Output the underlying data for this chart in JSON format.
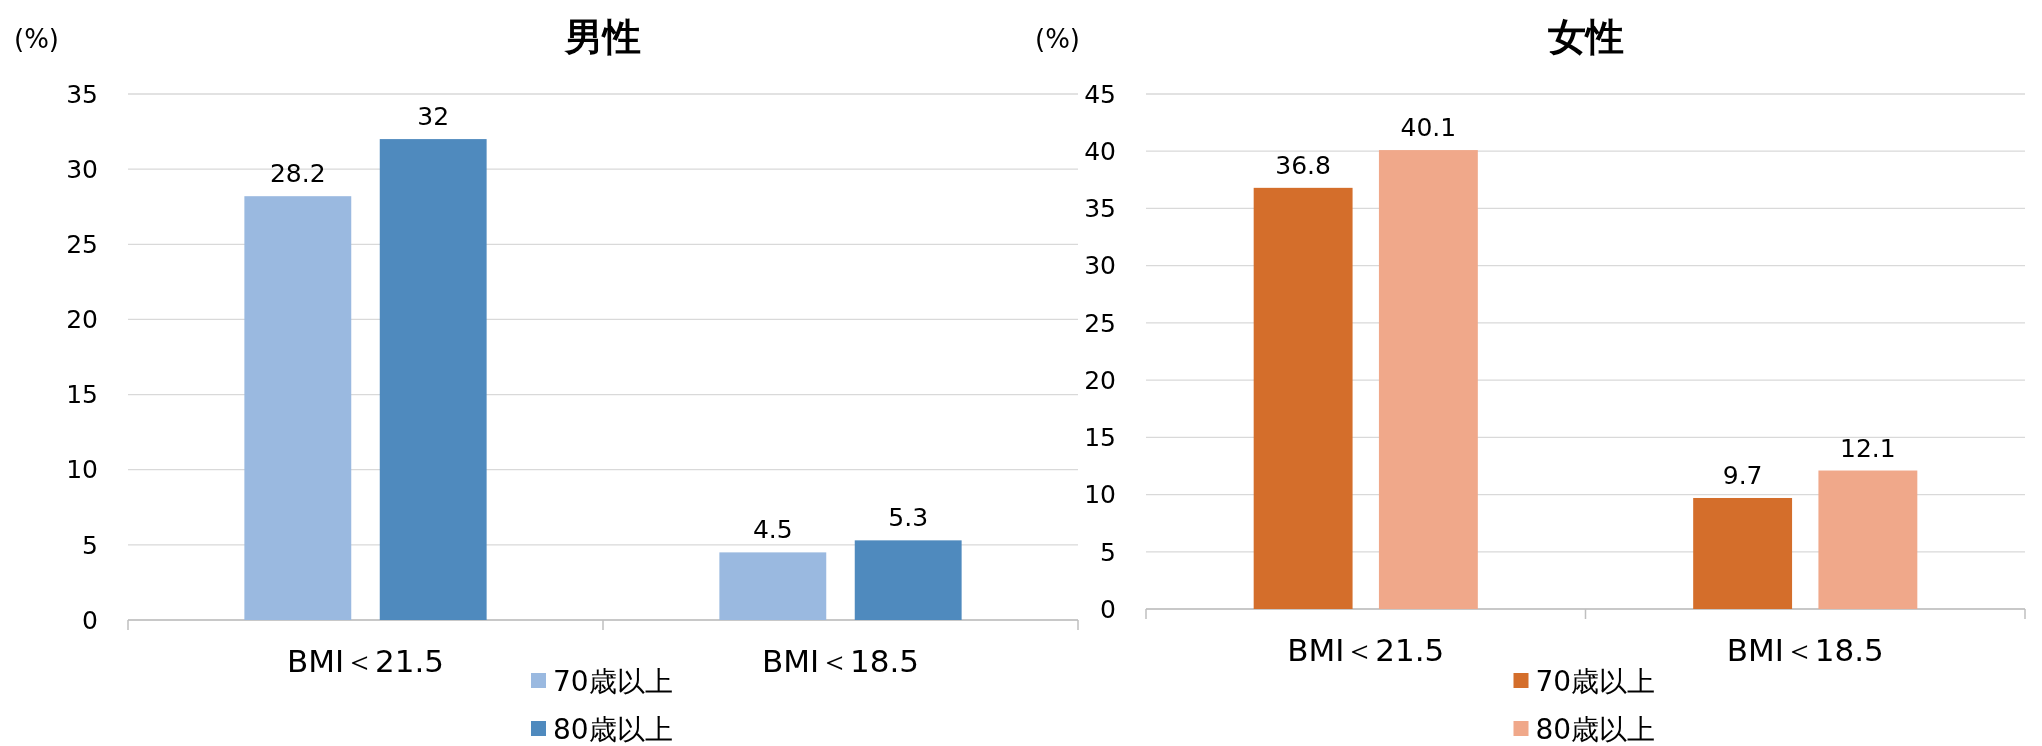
{
  "chart_data": [
    {
      "type": "bar",
      "title": "男性",
      "ylabel": "(%)",
      "categories": [
        "BMI＜21.5",
        "BMI＜18.5"
      ],
      "series": [
        {
          "name": "70歳以上",
          "color": "#9ab9e0",
          "values": [
            28.2,
            4.5
          ]
        },
        {
          "name": "80歳以上",
          "color": "#4f8abe",
          "values": [
            32,
            5.3
          ]
        }
      ],
      "ylim": [
        0,
        35
      ],
      "yticks": [
        0,
        5,
        10,
        15,
        20,
        25,
        30,
        35
      ],
      "grid": "y",
      "legend": "bottom",
      "data_labels": true
    },
    {
      "type": "bar",
      "title": "女性",
      "ylabel": "(%)",
      "categories": [
        "BMI＜21.5",
        "BMI＜18.5"
      ],
      "series": [
        {
          "name": "70歳以上",
          "color": "#d46e2b",
          "values": [
            36.8,
            9.7
          ]
        },
        {
          "name": "80歳以上",
          "color": "#f0a88a",
          "values": [
            40.1,
            12.1
          ]
        }
      ],
      "ylim": [
        0,
        45
      ],
      "yticks": [
        0,
        5,
        10,
        15,
        20,
        25,
        30,
        35,
        40,
        45
      ],
      "grid": "y",
      "legend": "bottom",
      "data_labels": true
    }
  ]
}
